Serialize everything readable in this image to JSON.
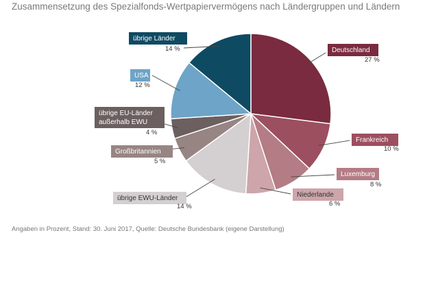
{
  "title": "Zusammensetzung des Spezialfonds-Wertpapiervermögens nach Ländergruppen und Ländern",
  "footer": "Angaben in Prozent, Stand: 30. Juni 2017, Quelle: Deutsche Bundesbank (eigene Darstellung)",
  "chart_data": {
    "type": "pie",
    "title": "Zusammensetzung des Spezialfonds-Wertpapiervermögens nach Ländergruppen und Ländern",
    "unit": "%",
    "slices": [
      {
        "label": "Deutschland",
        "value": 27,
        "pct_text": "27 %",
        "color": "#7a2b3f"
      },
      {
        "label": "Frankreich",
        "value": 10,
        "pct_text": "10 %",
        "color": "#9c4f5f"
      },
      {
        "label": "Luxemburg",
        "value": 8,
        "pct_text": "8 %",
        "color": "#b47c85"
      },
      {
        "label": "Niederlande",
        "value": 6,
        "pct_text": "6 %",
        "color": "#cda5aa"
      },
      {
        "label": "übrige EWU-Länder",
        "value": 14,
        "pct_text": "14 %",
        "color": "#d4cfd0"
      },
      {
        "label": "Großbritannien",
        "value": 5,
        "pct_text": "5 %",
        "color": "#978583"
      },
      {
        "label": "übrige EU-Länder außerhalb EWU",
        "label_lines": [
          "übrige EU-Länder",
          "außerhalb EWU"
        ],
        "value": 4,
        "pct_text": "4 %",
        "color": "#6c5f5f"
      },
      {
        "label": "USA",
        "value": 12,
        "pct_text": "12 %",
        "color": "#6da4c7"
      },
      {
        "label": "übrige Länder",
        "value": 14,
        "pct_text": "14 %",
        "color": "#0f4a63"
      }
    ]
  }
}
